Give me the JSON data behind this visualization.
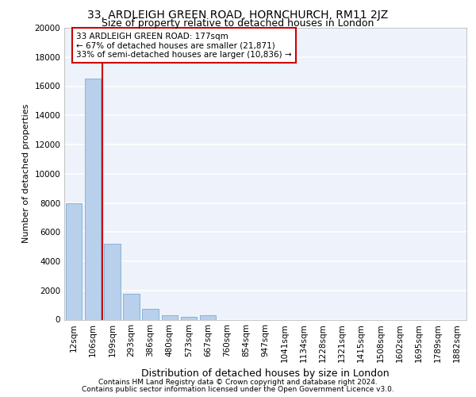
{
  "title1": "33, ARDLEIGH GREEN ROAD, HORNCHURCH, RM11 2JZ",
  "title2": "Size of property relative to detached houses in London",
  "xlabel": "Distribution of detached houses by size in London",
  "ylabel": "Number of detached properties",
  "bar_labels": [
    "12sqm",
    "106sqm",
    "199sqm",
    "293sqm",
    "386sqm",
    "480sqm",
    "573sqm",
    "667sqm",
    "760sqm",
    "854sqm",
    "947sqm",
    "1041sqm",
    "1134sqm",
    "1228sqm",
    "1321sqm",
    "1415sqm",
    "1508sqm",
    "1602sqm",
    "1695sqm",
    "1789sqm",
    "1882sqm"
  ],
  "bar_values": [
    8000,
    16500,
    5200,
    1750,
    750,
    300,
    200,
    300,
    0,
    0,
    0,
    0,
    0,
    0,
    0,
    0,
    0,
    0,
    0,
    0,
    0
  ],
  "bar_color": "#b8d0eb",
  "bar_edgecolor": "#7aadd4",
  "vline_x": 1.5,
  "annotation_text": "33 ARDLEIGH GREEN ROAD: 177sqm\n← 67% of detached houses are smaller (21,871)\n33% of semi-detached houses are larger (10,836) →",
  "annotation_box_facecolor": "#ffffff",
  "annotation_box_edgecolor": "#cc0000",
  "vline_color": "#cc0000",
  "footer1": "Contains HM Land Registry data © Crown copyright and database right 2024.",
  "footer2": "Contains public sector information licensed under the Open Government Licence v3.0.",
  "ylim": [
    0,
    20000
  ],
  "yticks": [
    0,
    2000,
    4000,
    6000,
    8000,
    10000,
    12000,
    14000,
    16000,
    18000,
    20000
  ],
  "bg_color": "#eef2fb",
  "grid_color": "#ffffff",
  "title1_fontsize": 10,
  "title2_fontsize": 9,
  "ylabel_fontsize": 8,
  "xlabel_fontsize": 9,
  "tick_fontsize": 7.5,
  "xtick_fontsize": 7.5,
  "footer_fontsize": 6.5,
  "ann_fontsize": 7.5
}
